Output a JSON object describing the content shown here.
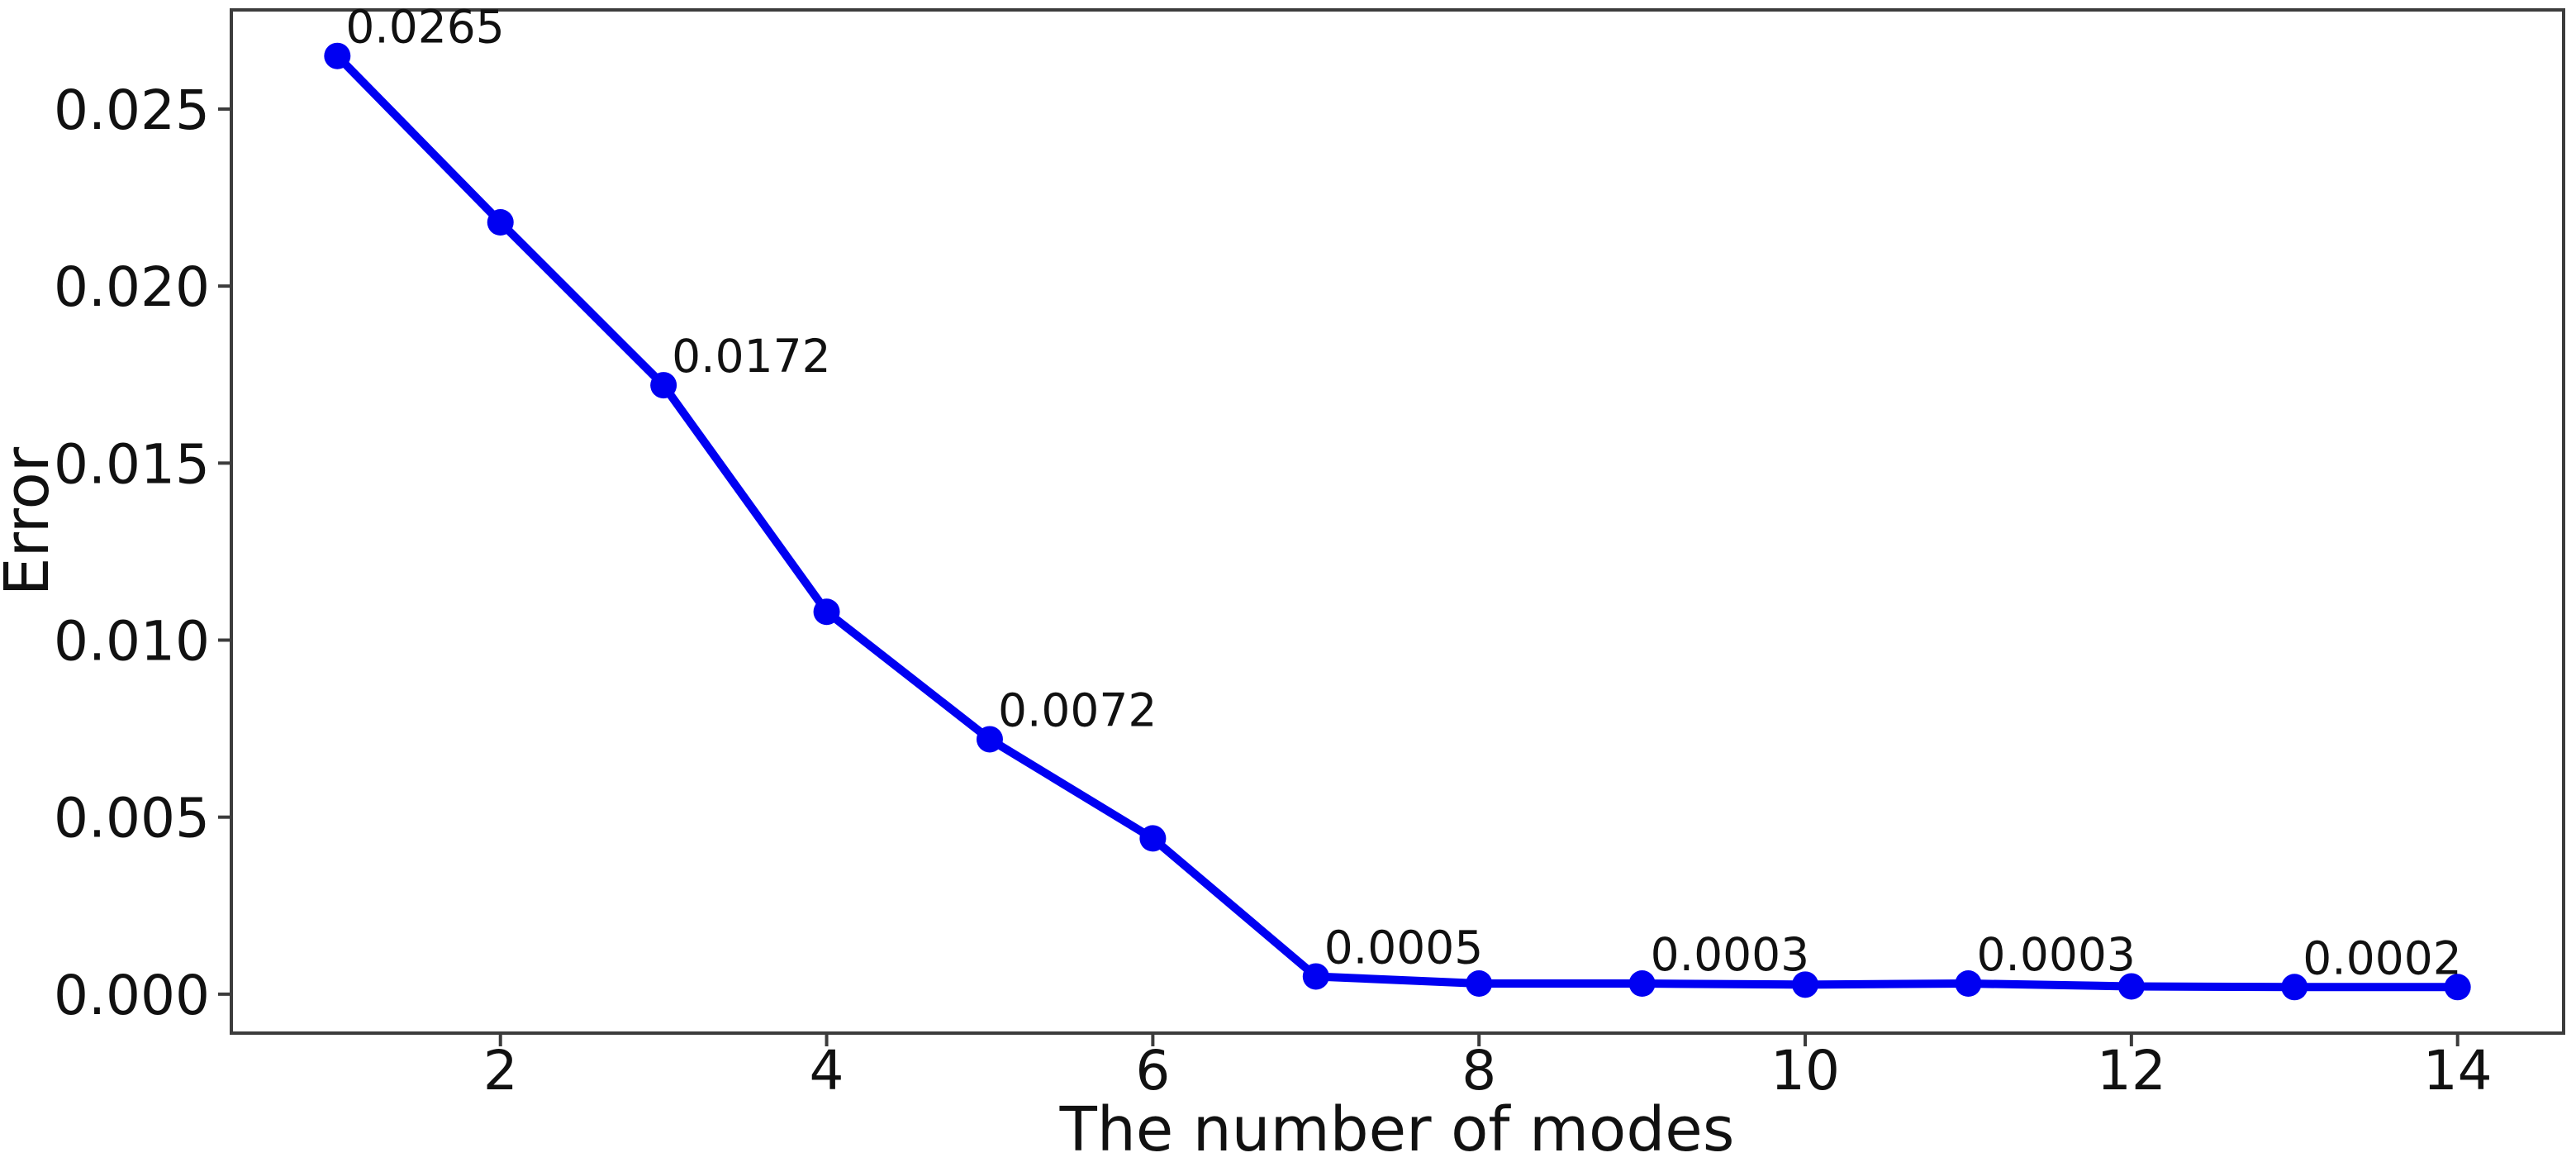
{
  "chart_data": {
    "type": "line",
    "title": "",
    "xlabel": "The number of modes",
    "ylabel": "Error",
    "x": [
      1,
      2,
      3,
      4,
      5,
      6,
      7,
      8,
      9,
      10,
      11,
      12,
      13,
      14
    ],
    "y": [
      0.0265,
      0.0218,
      0.0172,
      0.0108,
      0.0072,
      0.0044,
      0.0005,
      0.0003,
      0.0003,
      0.00027,
      0.0003,
      0.00022,
      0.0002,
      0.0002
    ],
    "point_labels": [
      "0.0265",
      "",
      "0.0172",
      "",
      "0.0072",
      "",
      "0.0005",
      "",
      "0.0003",
      "",
      "0.0003",
      "",
      "0.0002",
      ""
    ],
    "x_ticks": [
      2,
      4,
      6,
      8,
      10,
      12,
      14
    ],
    "x_tick_labels": [
      "2",
      "4",
      "6",
      "8",
      "10",
      "12",
      "14"
    ],
    "y_ticks": [
      0.0,
      0.005,
      0.01,
      0.015,
      0.02,
      0.025
    ],
    "y_tick_labels": [
      "0.000",
      "0.005",
      "0.010",
      "0.015",
      "0.020",
      "0.025"
    ],
    "xlim": [
      0.35,
      14.65
    ],
    "ylim": [
      -0.0011,
      0.0278
    ],
    "grid": false,
    "legend": null,
    "line_color": "#0000f2",
    "marker": "circle",
    "spine_color": "#3c3c3c",
    "text_color": "#111111"
  }
}
